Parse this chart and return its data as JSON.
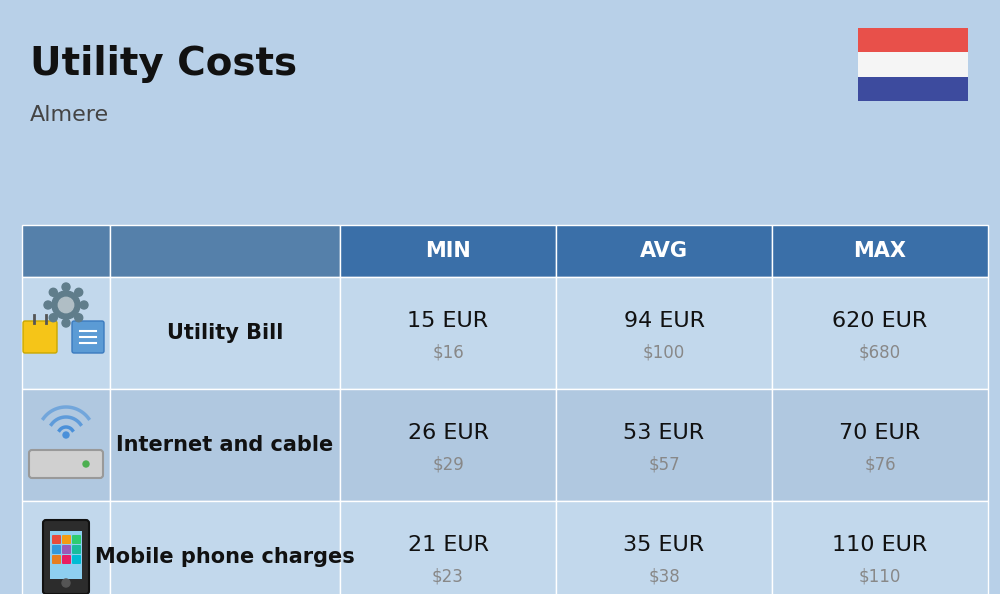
{
  "title": "Utility Costs",
  "subtitle": "Almere",
  "background_color": "#b8d0e8",
  "header_bg_color": "#3a6fa8",
  "header_text_color": "#ffffff",
  "row_bg_color_odd": "#c2d8ec",
  "row_bg_color_even": "#b0c8e0",
  "col_header_bg": "#5580aa",
  "table_border_color": "#ffffff",
  "rows": [
    {
      "label": "Utility Bill",
      "min_eur": "15 EUR",
      "min_usd": "$16",
      "avg_eur": "94 EUR",
      "avg_usd": "$100",
      "max_eur": "620 EUR",
      "max_usd": "$680"
    },
    {
      "label": "Internet and cable",
      "min_eur": "26 EUR",
      "min_usd": "$29",
      "avg_eur": "53 EUR",
      "avg_usd": "$57",
      "max_eur": "70 EUR",
      "max_usd": "$76"
    },
    {
      "label": "Mobile phone charges",
      "min_eur": "21 EUR",
      "min_usd": "$23",
      "avg_eur": "35 EUR",
      "avg_usd": "$38",
      "max_eur": "110 EUR",
      "max_usd": "$110"
    }
  ],
  "flag_red": "#e8504a",
  "flag_white": "#f5f5f5",
  "flag_blue": "#3d4b9e",
  "title_fontsize": 28,
  "subtitle_fontsize": 16,
  "header_fontsize": 15,
  "label_fontsize": 15,
  "eur_fontsize": 16,
  "usd_fontsize": 12,
  "usd_color": "#888888",
  "text_color": "#111111"
}
